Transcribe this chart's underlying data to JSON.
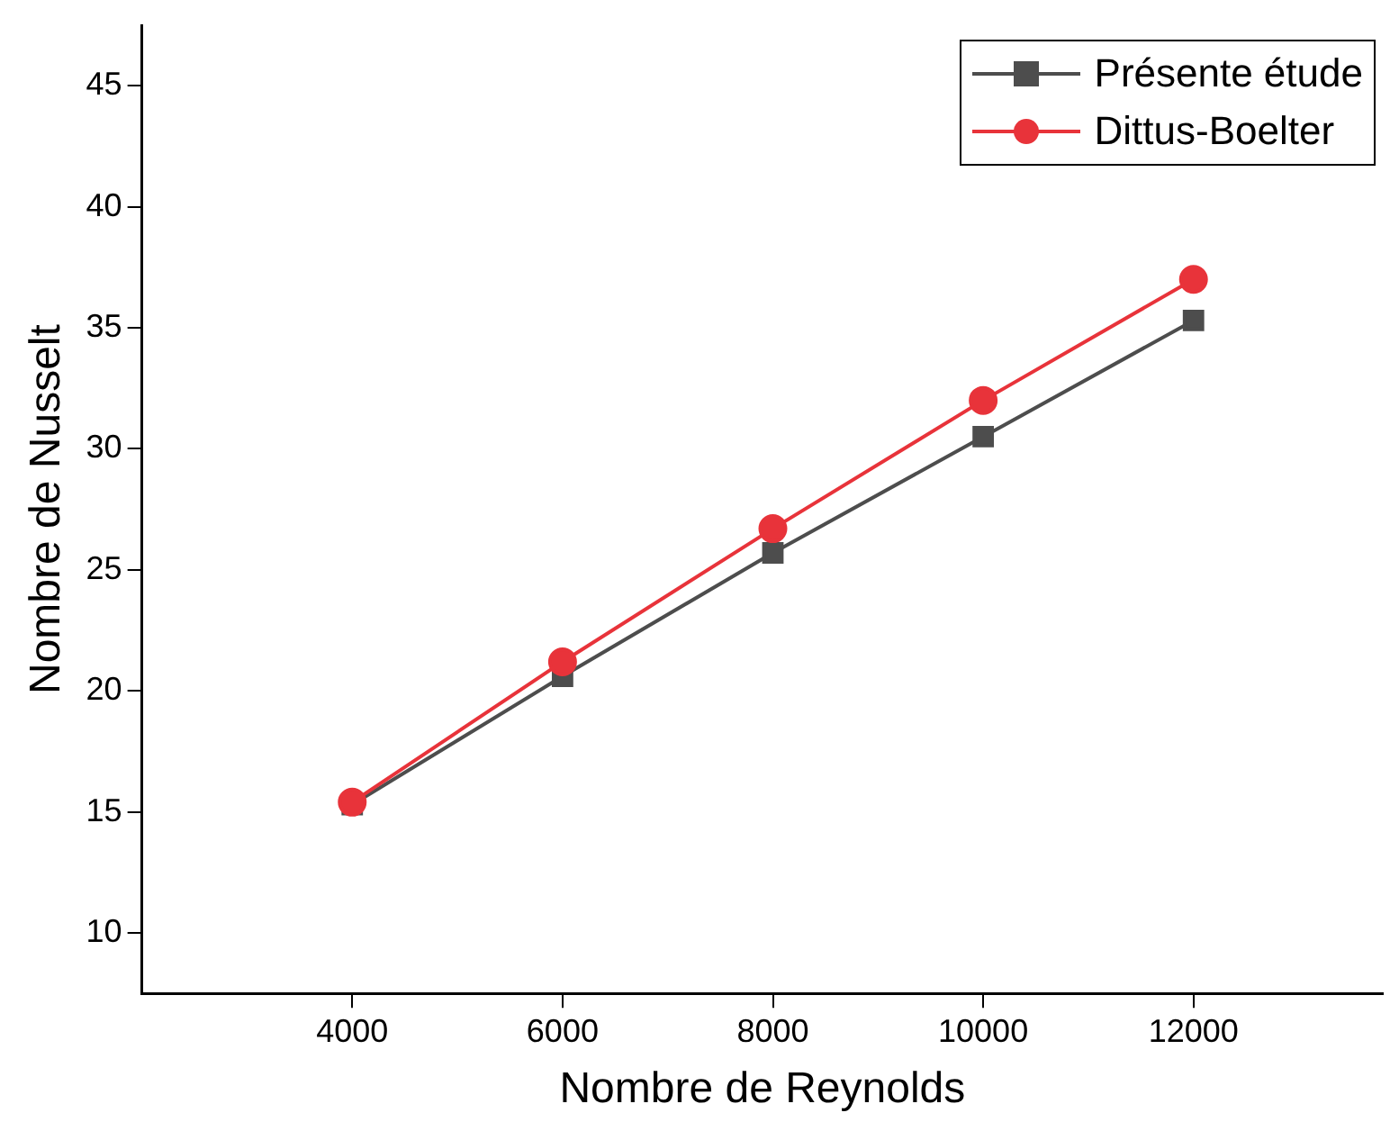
{
  "chart_data": {
    "type": "line",
    "xlabel": "Nombre de Reynolds",
    "ylabel": "Nombre de Nusselt",
    "x": [
      4000,
      6000,
      8000,
      10000,
      12000
    ],
    "series": [
      {
        "name": "Présente étude",
        "color": "#4d4d4d",
        "marker": "square",
        "values": [
          15.3,
          20.6,
          25.7,
          30.5,
          35.3
        ]
      },
      {
        "name": "Dittus-Boelter",
        "color": "#e8333a",
        "marker": "circle",
        "values": [
          15.4,
          21.2,
          26.7,
          32.0,
          37.0
        ]
      }
    ],
    "xlim": [
      2000,
      13800
    ],
    "xticks": [
      4000,
      6000,
      8000,
      10000,
      12000
    ],
    "ylim": [
      7.5,
      47.5
    ],
    "yticks": [
      10,
      15,
      20,
      25,
      30,
      35,
      40,
      45
    ],
    "grid": false,
    "legend": "top right",
    "line_style": "solid"
  }
}
